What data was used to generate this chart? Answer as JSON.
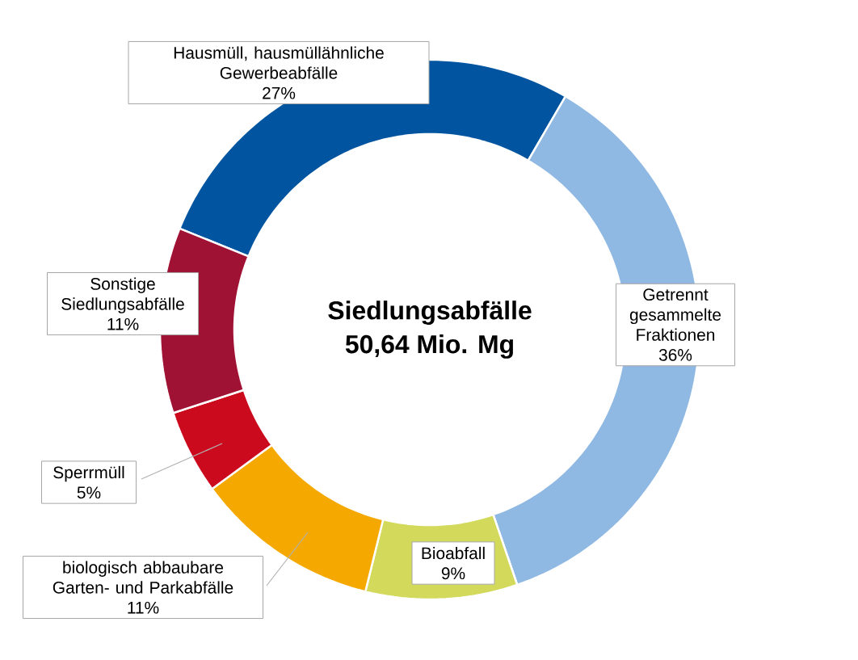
{
  "chart_data": {
    "type": "donut",
    "title": "Siedlungsabfälle",
    "subtitle": "50,64 Mio. Mg",
    "categories": [
      "Hausmüll, hausmüllähnliche Gewerbeabfälle",
      "Getrennt gesammelte Fraktionen",
      "Bioabfall",
      "biologisch abbaubare Garten- und Parkabfälle",
      "Sperrmüll",
      "Sonstige Siedlungsabfälle"
    ],
    "values": [
      27,
      36,
      9,
      11,
      5,
      11
    ],
    "colors": [
      "#0054a0",
      "#8fb8e3",
      "#d3d95b",
      "#f5a800",
      "#cc0a1e",
      "#a01234"
    ],
    "value_labels": [
      "27%",
      "36%",
      "9%",
      "11%",
      "5%",
      "11%"
    ]
  }
}
